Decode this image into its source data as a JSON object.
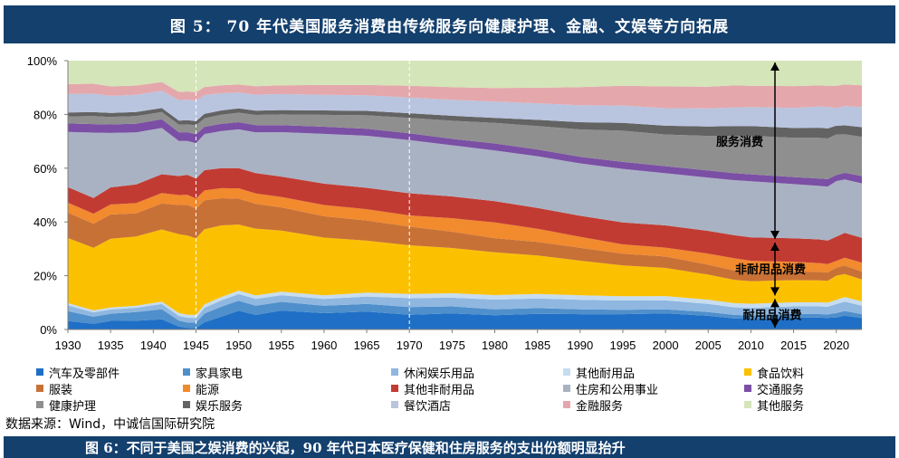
{
  "header": {
    "title": "图 5： 70 年代美国服务消费由传统服务向健康护理、金融、文娱等方向拓展"
  },
  "source": "数据来源：Wind，中诚信国际研究院",
  "next_caption": "图 6：不同于美国之娱消费的兴起，90 年代日本医疗保健和住房服务的支出份额明显抬升",
  "chart_data": {
    "type": "area",
    "stacked": true,
    "ylim": [
      0,
      100
    ],
    "y_ticks": [
      "0%",
      "20%",
      "40%",
      "60%",
      "80%",
      "100%"
    ],
    "x_ticks": [
      "1930",
      "1935",
      "1940",
      "1945",
      "1950",
      "1955",
      "1960",
      "1965",
      "1970",
      "1975",
      "1980",
      "1985",
      "1990",
      "1995",
      "2000",
      "2005",
      "2010",
      "2015",
      "2020"
    ],
    "xlim": [
      1930,
      2023
    ],
    "dashed_vlines": [
      1945,
      1970
    ],
    "annotations": [
      {
        "text": "服务消费",
        "range": [
          33,
          100
        ]
      },
      {
        "text": "非耐用品消费",
        "range": [
          12,
          33
        ]
      },
      {
        "text": "耐用品消费",
        "range": [
          0,
          12
        ]
      }
    ],
    "x": [
      1930,
      1933,
      1935,
      1938,
      1941,
      1943,
      1944,
      1945,
      1946,
      1948,
      1950,
      1952,
      1955,
      1960,
      1965,
      1970,
      1975,
      1980,
      1985,
      1990,
      1995,
      2000,
      2005,
      2008,
      2010,
      2015,
      2018,
      2019,
      2020,
      2021,
      2023
    ],
    "series": [
      {
        "name": "汽车及零部件",
        "color": "#1f6fc6",
        "values": [
          3,
          2,
          3,
          3,
          3.5,
          1,
          0.6,
          0.5,
          2.5,
          4.5,
          6.5,
          5,
          6.5,
          5.5,
          6,
          5,
          5.5,
          5,
          5.5,
          5.3,
          5.3,
          5.5,
          4.7,
          3.8,
          3.6,
          4.1,
          4,
          3.9,
          4.2,
          4.8,
          4
        ]
      },
      {
        "name": "家具家电",
        "color": "#4f8fcb",
        "values": [
          3.5,
          2.5,
          2.5,
          3,
          3.5,
          2,
          1.8,
          1.8,
          3,
          3.5,
          3.5,
          3.2,
          3,
          2.5,
          2.6,
          2.6,
          2.4,
          2.1,
          2.0,
          1.7,
          1.5,
          1.4,
          1.3,
          1.2,
          1.2,
          1.2,
          1.2,
          1.2,
          1.5,
          1.6,
          1.3
        ]
      },
      {
        "name": "休闲娱乐用品",
        "color": "#8fb7e0",
        "values": [
          2,
          1.5,
          1.5,
          1.5,
          1.8,
          1.6,
          1.6,
          1.6,
          2,
          2.2,
          2.3,
          2.3,
          2.3,
          2.3,
          2.5,
          3,
          3,
          3.4,
          3.4,
          3.3,
          3.2,
          3,
          2.8,
          2.6,
          2.6,
          2.5,
          2.6,
          2.6,
          3.1,
          3.2,
          2.9
        ]
      },
      {
        "name": "其他耐用品",
        "color": "#c6dcef",
        "values": [
          0.8,
          0.7,
          0.7,
          0.7,
          0.8,
          1.0,
          1.0,
          1.0,
          1.2,
          1.2,
          1.2,
          1.2,
          1.2,
          1.2,
          1.3,
          1.4,
          1.5,
          1.6,
          1.6,
          1.6,
          1.5,
          1.5,
          1.4,
          1.4,
          1.4,
          1.4,
          1.4,
          1.4,
          1.5,
          1.6,
          1.5
        ]
      },
      {
        "name": "食品饮料",
        "color": "#fbc100",
        "values": [
          23,
          22,
          24,
          24,
          25,
          27,
          27,
          26,
          26,
          25,
          23,
          23,
          21,
          19.5,
          17.5,
          16.5,
          15.5,
          15,
          13.5,
          12,
          10.6,
          9.6,
          8.6,
          8.0,
          7.7,
          7.5,
          7.4,
          7.4,
          8.4,
          8,
          7.6
        ]
      },
      {
        "name": "服装",
        "color": "#c87136",
        "values": [
          9,
          8.5,
          8.5,
          8,
          9,
          10,
          10.5,
          10,
          10,
          9.5,
          9,
          8.5,
          8,
          7.2,
          6.8,
          6.3,
          5.6,
          5,
          4.8,
          4.5,
          4.1,
          3.9,
          3.4,
          3.2,
          3.1,
          3.0,
          2.9,
          2.8,
          2.8,
          2.9,
          2.7
        ]
      },
      {
        "name": "能源",
        "color": "#f28a2e",
        "values": [
          3.5,
          3.5,
          3.5,
          3.5,
          3.6,
          3.4,
          3.4,
          3.4,
          3.4,
          3.5,
          3.6,
          3.6,
          3.6,
          3.8,
          3.8,
          3.8,
          4.6,
          5.5,
          4.6,
          3.8,
          3.2,
          3.0,
          3.8,
          4.2,
          3.9,
          3.2,
          3.0,
          2.9,
          2.3,
          2.7,
          3.1
        ]
      },
      {
        "name": "其他非耐用品",
        "color": "#c23b33",
        "values": [
          5.5,
          5.5,
          6,
          6.5,
          6.5,
          6.5,
          6.8,
          6.8,
          7,
          7,
          7,
          7,
          7,
          7.2,
          7.2,
          7.5,
          7.5,
          7.5,
          7.3,
          7.3,
          7.6,
          7.6,
          7.8,
          7.9,
          8,
          8,
          8,
          8,
          8.4,
          8.6,
          8.6
        ]
      },
      {
        "name": "住房和公用事业",
        "color": "#a9b2c3",
        "values": [
          19.5,
          23,
          19,
          18,
          16,
          12,
          11.5,
          12,
          12.5,
          13,
          13.5,
          14,
          15.3,
          16.8,
          17.5,
          18,
          17.5,
          17.8,
          18.2,
          18.2,
          18.5,
          17.8,
          18.3,
          18.8,
          19.2,
          18.3,
          18.1,
          18.3,
          19.3,
          18.5,
          18.8
        ]
      },
      {
        "name": "交通服务",
        "color": "#7b4fa5",
        "values": [
          3,
          3,
          3,
          3,
          3,
          3,
          3,
          3,
          2.5,
          2.5,
          2.5,
          2.5,
          2.4,
          2.4,
          2.4,
          2.3,
          2.2,
          2.5,
          2.4,
          2.3,
          2.4,
          2.4,
          2.4,
          2.4,
          2.4,
          2.4,
          2.5,
          2.5,
          2.1,
          2.3,
          2.5
        ]
      },
      {
        "name": "健康护理",
        "color": "#8f8f8f",
        "values": [
          2.5,
          2.8,
          2.6,
          2.6,
          2.5,
          2.6,
          2.7,
          3,
          3,
          3.2,
          3.3,
          3.5,
          3.7,
          4,
          4.5,
          5.2,
          6.2,
          7.2,
          8.2,
          9.5,
          10.8,
          10.8,
          11.9,
          12.8,
          13.2,
          13.3,
          13.8,
          13.8,
          14.1,
          13.3,
          13.6
        ]
      },
      {
        "name": "娱乐服务",
        "color": "#636363",
        "values": [
          1.4,
          1.4,
          1.4,
          1.4,
          1.4,
          1.4,
          1.4,
          1.4,
          1.5,
          1.5,
          1.5,
          1.5,
          1.5,
          1.5,
          1.5,
          1.6,
          1.7,
          1.8,
          2.2,
          2.5,
          2.7,
          3,
          3.2,
          3.3,
          3.3,
          3.3,
          3.4,
          3.4,
          3.0,
          3.1,
          3.3
        ]
      },
      {
        "name": "餐饮酒店",
        "color": "#b9c4df",
        "values": [
          6.5,
          6.5,
          6,
          6,
          6,
          7,
          7,
          7,
          6.5,
          6,
          5.5,
          5.5,
          5.5,
          5.3,
          5.2,
          5.3,
          5.5,
          5.7,
          5.8,
          5.9,
          6,
          6,
          6.2,
          6.4,
          6.5,
          6.8,
          7.2,
          7.3,
          6.1,
          6.7,
          7.0
        ]
      },
      {
        "name": "金融服务",
        "color": "#e4a8ac",
        "values": [
          3.5,
          3.5,
          3.3,
          3.2,
          3,
          2.8,
          2.8,
          2.8,
          2.8,
          2.8,
          2.8,
          2.9,
          3,
          3.3,
          3.5,
          4,
          4.3,
          4.8,
          5.5,
          6.3,
          6.8,
          7.4,
          7.5,
          7.5,
          7.3,
          7.4,
          7.1,
          7.2,
          7.8,
          7.5,
          7.5
        ]
      },
      {
        "name": "其他服务",
        "color": "#d4e5b9",
        "values": [
          8.3,
          8.1,
          9.0,
          8.6,
          7.4,
          10.7,
          10.5,
          10.7,
          9.1,
          8.6,
          8.3,
          8.8,
          8.5,
          8.2,
          8.2,
          8.5,
          9.1,
          9.6,
          9.5,
          9.2,
          8.7,
          8.8,
          8.9,
          8.5,
          8.6,
          8.6,
          8.4,
          8.5,
          8.7,
          8.2,
          8.5
        ]
      }
    ]
  }
}
